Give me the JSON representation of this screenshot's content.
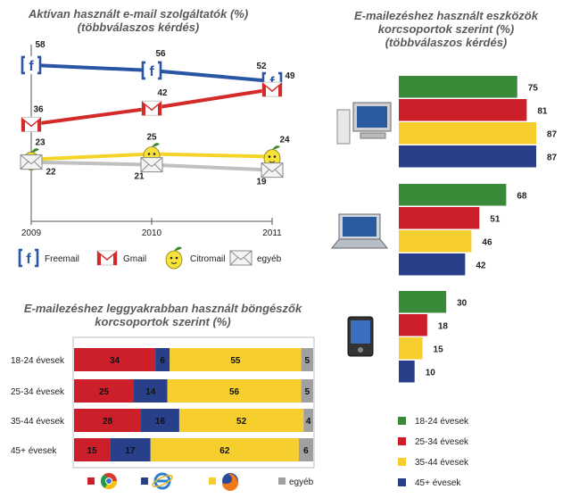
{
  "colors": {
    "freemail": "#2a54a4",
    "gmail": "#d42a2a",
    "citromail": "#f5d42a",
    "egyeb": "#c0c0c0",
    "g18": "#3a8a3a",
    "g25": "#cc1f2a",
    "g35": "#f6ce2e",
    "g45": "#283f8a",
    "chrome": "#cc1f2a",
    "ie": "#283f8a",
    "firefox": "#f6ce2e",
    "other": "#a0a0a0"
  },
  "icons": {
    "freemail": "freemail-logo-icon",
    "gmail": "gmail-logo-icon",
    "citromail": "citromail-lemon-icon",
    "egyeb": "envelope-icon",
    "chrome": "chrome-logo-icon",
    "ie": "internet-explorer-logo-icon",
    "firefox": "firefox-logo-icon",
    "desktop": "desktop-computer-icon",
    "laptop": "laptop-icon",
    "mobile": "mobile-device-icon"
  },
  "chart_data": [
    {
      "type": "line",
      "title": "Aktívan használt e-mail szolgáltatók (%)",
      "subtitle": "(többválaszos kérdés)",
      "x": [
        "2009",
        "2010",
        "2011"
      ],
      "series": [
        {
          "name": "Freemail",
          "values": [
            58,
            56,
            52
          ]
        },
        {
          "name": "Gmail",
          "values": [
            36,
            42,
            49
          ]
        },
        {
          "name": "Citromail",
          "values": [
            23,
            25,
            24
          ]
        },
        {
          "name": "egyéb",
          "values": [
            22,
            21,
            19
          ]
        }
      ],
      "ylim": [
        0,
        70
      ],
      "legend": "bottom"
    },
    {
      "type": "bar",
      "orientation": "horizontal",
      "title": "E-mailezéshez használt eszközök korcsoportok szerint (%)",
      "subtitle": "(többválaszos kérdés)",
      "categories": [
        "desktop",
        "laptop",
        "mobile"
      ],
      "series": [
        {
          "name": "18-24 évesek",
          "values": [
            75,
            68,
            30
          ]
        },
        {
          "name": "25-34 évesek",
          "values": [
            81,
            51,
            18
          ]
        },
        {
          "name": "35-44 évesek",
          "values": [
            87,
            46,
            15
          ]
        },
        {
          "name": "45+ évesek",
          "values": [
            87,
            42,
            10
          ]
        }
      ],
      "xlim": [
        0,
        87
      ],
      "legend": "bottom-right"
    },
    {
      "type": "bar",
      "orientation": "horizontal",
      "stacked": true,
      "title": "E-mailezéshez leggyakrabban használt böngészők korcsoportok szerint (%)",
      "categories": [
        "18-24 évesek",
        "25-34 évesek",
        "35-44 évesek",
        "45+ évesek"
      ],
      "series": [
        {
          "name": "Chrome",
          "values": [
            34,
            25,
            28,
            15
          ]
        },
        {
          "name": "Internet Explorer",
          "values": [
            6,
            14,
            16,
            17
          ]
        },
        {
          "name": "Firefox",
          "values": [
            55,
            56,
            52,
            62
          ]
        },
        {
          "name": "egyéb",
          "values": [
            5,
            5,
            4,
            6
          ]
        }
      ],
      "xlim": [
        0,
        100
      ],
      "legend": "bottom"
    }
  ]
}
